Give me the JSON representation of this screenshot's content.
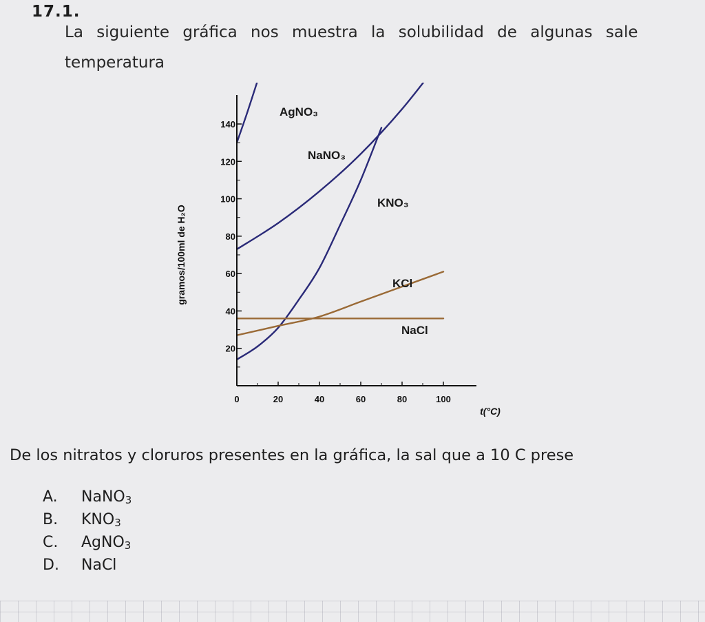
{
  "question": {
    "number": "17.1.",
    "intro_line1": "La siguiente gráfica nos muestra la solubilidad de algunas sale",
    "intro_line2": "temperatura",
    "prompt": "De los nitratos y cloruros presentes en la gráfica, la sal que a 10 C prese",
    "options": [
      {
        "letter": "A.",
        "base": "NaNO",
        "sub": "3"
      },
      {
        "letter": "B.",
        "base": "KNO",
        "sub": "3"
      },
      {
        "letter": "C.",
        "base": "AgNO",
        "sub": "3"
      },
      {
        "letter": "D.",
        "base": "NaCl",
        "sub": ""
      }
    ]
  },
  "colors": {
    "nitrates": "#2a2a78",
    "chlorides": "#9a6a36",
    "axis": "#111111",
    "background": "#ececee"
  },
  "chart_data": {
    "type": "line",
    "title": "",
    "xlabel": "t(°C)",
    "ylabel": "gramos/100ml de H₂O",
    "xlim": [
      0,
      100
    ],
    "ylim": [
      0,
      140
    ],
    "x_ticks": [
      "0",
      "20",
      "40",
      "60",
      "80",
      "100"
    ],
    "y_ticks": [
      "20",
      "40",
      "60",
      "80",
      "100",
      "120",
      "140"
    ],
    "grid": false,
    "legend": "none",
    "series": [
      {
        "name": "AgNO₃",
        "color": "#2a2a78",
        "x": [
          0,
          5,
          10
        ],
        "y": [
          130,
          146,
          163
        ]
      },
      {
        "name": "NaNO₃",
        "color": "#2a2a78",
        "x": [
          0,
          20,
          40,
          60,
          80,
          100
        ],
        "y": [
          73,
          87,
          104,
          124,
          148,
          176
        ]
      },
      {
        "name": "KNO₃",
        "color": "#2a2a78",
        "x": [
          0,
          10,
          20,
          30,
          40,
          50,
          60,
          70
        ],
        "y": [
          14,
          21,
          31,
          46,
          63,
          86,
          110,
          138
        ]
      },
      {
        "name": "KCl",
        "color": "#9a6a36",
        "x": [
          0,
          20,
          40,
          60,
          80,
          100
        ],
        "y": [
          27,
          32,
          37,
          45,
          53,
          61
        ]
      },
      {
        "name": "NaCl",
        "color": "#9a6a36",
        "x": [
          0,
          20,
          40,
          60,
          80,
          100
        ],
        "y": [
          36,
          36,
          36,
          36,
          36,
          36
        ]
      }
    ]
  }
}
